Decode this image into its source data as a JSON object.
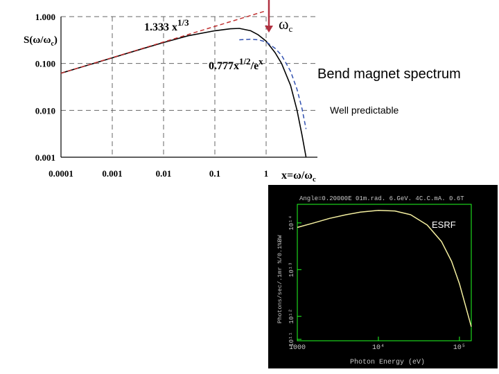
{
  "chart_data": [
    {
      "type": "line",
      "ylabel": "S(ω/ω",
      "ylabel_sub": "c",
      "ylabel_end": ")",
      "x_axis_label": "x=ω/ω",
      "x_axis_label_sub": "c",
      "x_scale": "log",
      "y_scale": "log",
      "xlim": [
        0.0001,
        10
      ],
      "ylim": [
        0.001,
        1
      ],
      "x_ticks": [
        "0.0001",
        "0.001",
        "0.01",
        "0.1",
        "1"
      ],
      "x_tick_values": [
        0.0001,
        0.001,
        0.01,
        0.1,
        1
      ],
      "y_ticks": [
        "1.000",
        "0.100",
        "0.010",
        "0.001"
      ],
      "y_tick_values": [
        1,
        0.1,
        0.01,
        0.001
      ],
      "grid": "dashed",
      "marker_label": "ω",
      "marker_label_sub": "c",
      "marker_x": 1,
      "series": [
        {
          "color": "#000000",
          "style": "solid",
          "x": [
            0.0001,
            0.0003,
            0.001,
            0.003,
            0.01,
            0.03,
            0.1,
            0.2,
            0.3,
            0.5,
            0.7,
            1,
            1.5,
            2,
            3,
            4,
            5,
            6
          ],
          "y": [
            0.062,
            0.089,
            0.132,
            0.19,
            0.28,
            0.39,
            0.5,
            0.55,
            0.56,
            0.5,
            0.41,
            0.3,
            0.17,
            0.1,
            0.034,
            0.01,
            0.003,
            0.001
          ]
        },
        {
          "color": "#c03030",
          "style": "dashed",
          "annotation": "1.333 x^1/3",
          "annotation_base": "1.333 x",
          "annotation_exp": "1/3",
          "x": [
            0.0001,
            1
          ],
          "y": [
            0.062,
            1.333
          ]
        },
        {
          "color": "#3050b0",
          "style": "dashed",
          "annotation": "0.777x^1/2/e^x",
          "annotation_base": "0.777x",
          "annotation_exp": "1/2",
          "annotation_mid": "/e",
          "annotation_exp2": "x",
          "x": [
            0.3,
            0.5,
            0.7,
            1,
            1.5,
            2,
            3,
            4,
            5,
            6
          ],
          "y": [
            0.32,
            0.33,
            0.32,
            0.29,
            0.21,
            0.15,
            0.068,
            0.028,
            0.011,
            0.004
          ]
        }
      ]
    },
    {
      "type": "line",
      "title": "Angle=0.20000E  01m.rad.  6.GeV.  4C.C.mA.  0.6T",
      "xlabel": "Photon Energy (eV)",
      "ylabel": "Photons/sec/.1mr %/0.1%BW",
      "x_scale": "log",
      "y_scale": "log",
      "x_ticks": [
        "1000",
        "10⁴",
        "10⁵"
      ],
      "y_ticks": [
        "10¹⁴",
        "10¹³",
        "10¹²",
        "10¹¹"
      ],
      "series": [
        {
          "color": "#f5f0a0",
          "x": [
            1000,
            1600,
            2500,
            4000,
            6000,
            10000,
            16000,
            25000,
            40000,
            60000,
            80000,
            100000,
            140000
          ],
          "y": [
            80000000000000.0,
            100000000000000.0,
            125000000000000.0,
            150000000000000.0,
            170000000000000.0,
            185000000000000.0,
            180000000000000.0,
            150000000000000.0,
            90000000000000.0,
            40000000000000.0,
            15000000000000.0,
            5000000000000.0,
            600000000000.0
          ]
        }
      ]
    }
  ],
  "texts": {
    "title": "Bend magnet spectrum",
    "subtitle": "Well predictable",
    "esrf_label": "ESRF"
  },
  "colors": {
    "arrow": "#b03040",
    "main_curve": "#000000",
    "approx_low": "#c03030",
    "approx_high": "#3050b0",
    "esrf_curve": "#f5f0a0",
    "esrf_frame": "#22ff22"
  }
}
